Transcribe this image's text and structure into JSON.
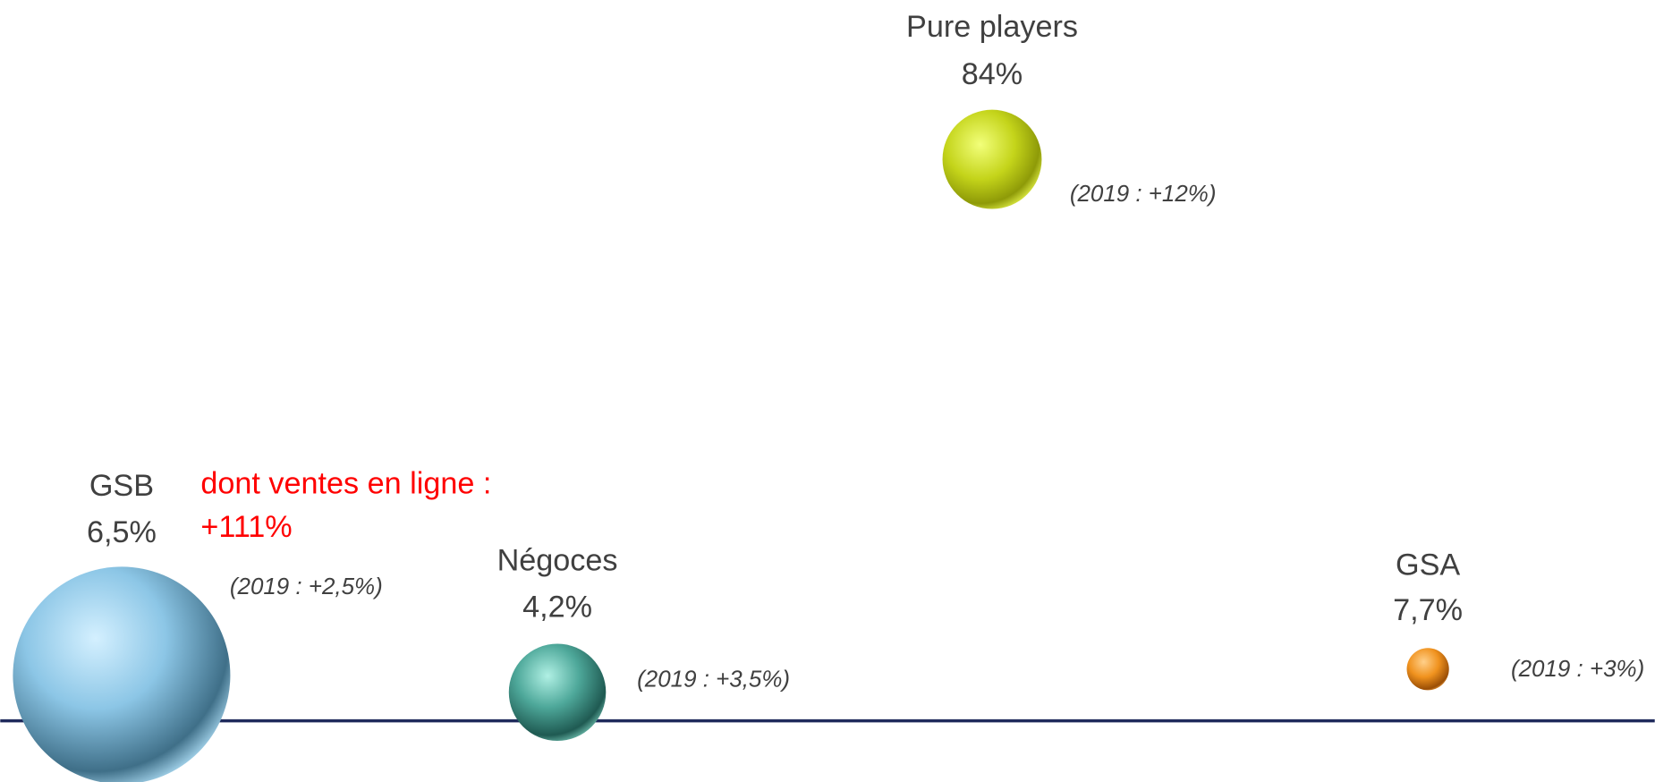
{
  "nodes": [
    {
      "label": "Pure players",
      "value": "84%",
      "note": "(2019 : +12%)"
    },
    {
      "label": "GSB",
      "value": "6,5%",
      "note": "(2019 : +2,5%)"
    },
    {
      "label": "Négoces",
      "value": "4,2%",
      "note": "(2019 : +3,5%)"
    },
    {
      "label": "GSA",
      "value": "7,7%",
      "note": "(2019 : +3%)"
    }
  ],
  "highlight": {
    "line1": "dont ventes en ligne :",
    "line2": "+111%"
  }
}
